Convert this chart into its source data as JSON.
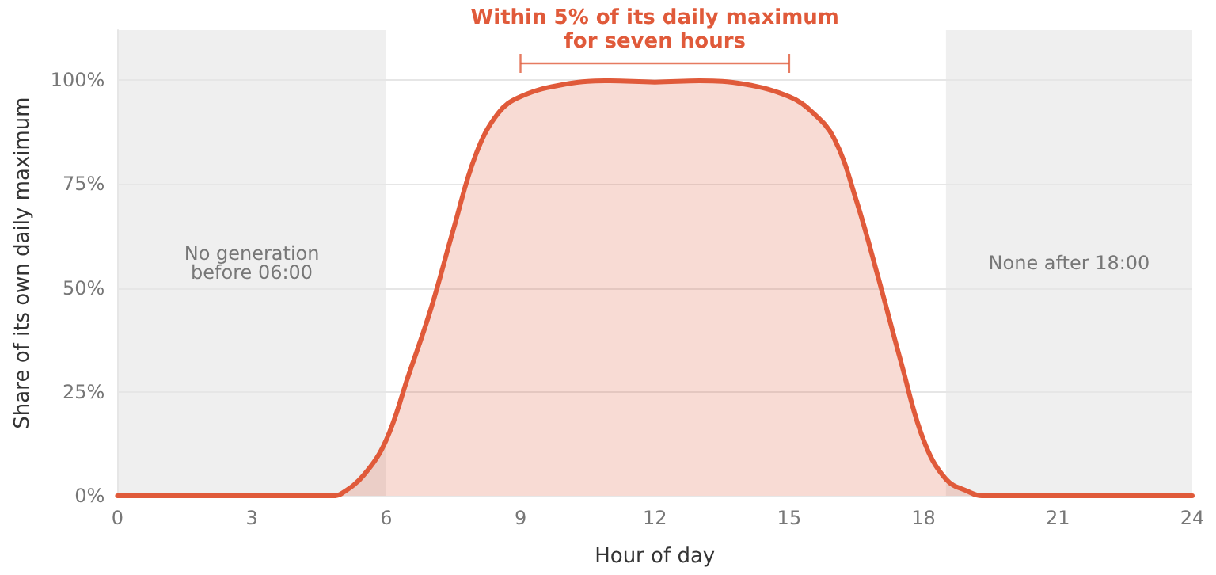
{
  "chart_data": {
    "type": "area",
    "xlabel": "Hour of day",
    "ylabel": "Share of its own daily maximum",
    "annotations": [
      "Within 5% of its daily maximum\nfor seven hours"
    ],
    "x": [
      0,
      1,
      2,
      3,
      4,
      4.8,
      5.0,
      5.5,
      6,
      6.5,
      7,
      7.5,
      8,
      8.5,
      9,
      10,
      11,
      12,
      13,
      14,
      15,
      15.5,
      16,
      16.5,
      17,
      17.5,
      18,
      18.5,
      19,
      19.3,
      20,
      21,
      22,
      23,
      24
    ],
    "series": [
      {
        "color": "#e05a3a",
        "values": [
          0,
          0,
          0,
          0,
          0,
          0,
          0.5,
          5,
          13.4,
          29,
          45,
          64,
          82,
          92,
          96,
          99,
          99.8,
          99.5,
          99.8,
          99,
          96,
          92.4,
          86,
          71,
          52,
          32,
          13.4,
          4,
          1,
          0,
          0,
          0,
          0,
          0,
          0
        ]
      }
    ],
    "bands": [
      {
        "axis": "x",
        "from": 0,
        "to": 6,
        "label": "No generation\nbefore 06:00",
        "color": "#efefef"
      },
      {
        "axis": "x",
        "from": 18.5,
        "to": 24,
        "label": "None after 18:00",
        "color": "#efefef"
      }
    ],
    "xlim": [
      0,
      24
    ],
    "xticks": [
      0,
      3,
      6,
      9,
      12,
      15,
      18,
      21,
      24
    ],
    "ylim": [
      0,
      112
    ],
    "yticks": [
      {
        "value": 0,
        "label": "0%"
      },
      {
        "value": 25,
        "label": "25%"
      },
      {
        "value": 50,
        "label": "50%"
      },
      {
        "value": 75,
        "label": "75%"
      },
      {
        "value": 100,
        "label": "100%"
      }
    ],
    "grid": "y",
    "marker": "none",
    "line_style": "solid"
  }
}
